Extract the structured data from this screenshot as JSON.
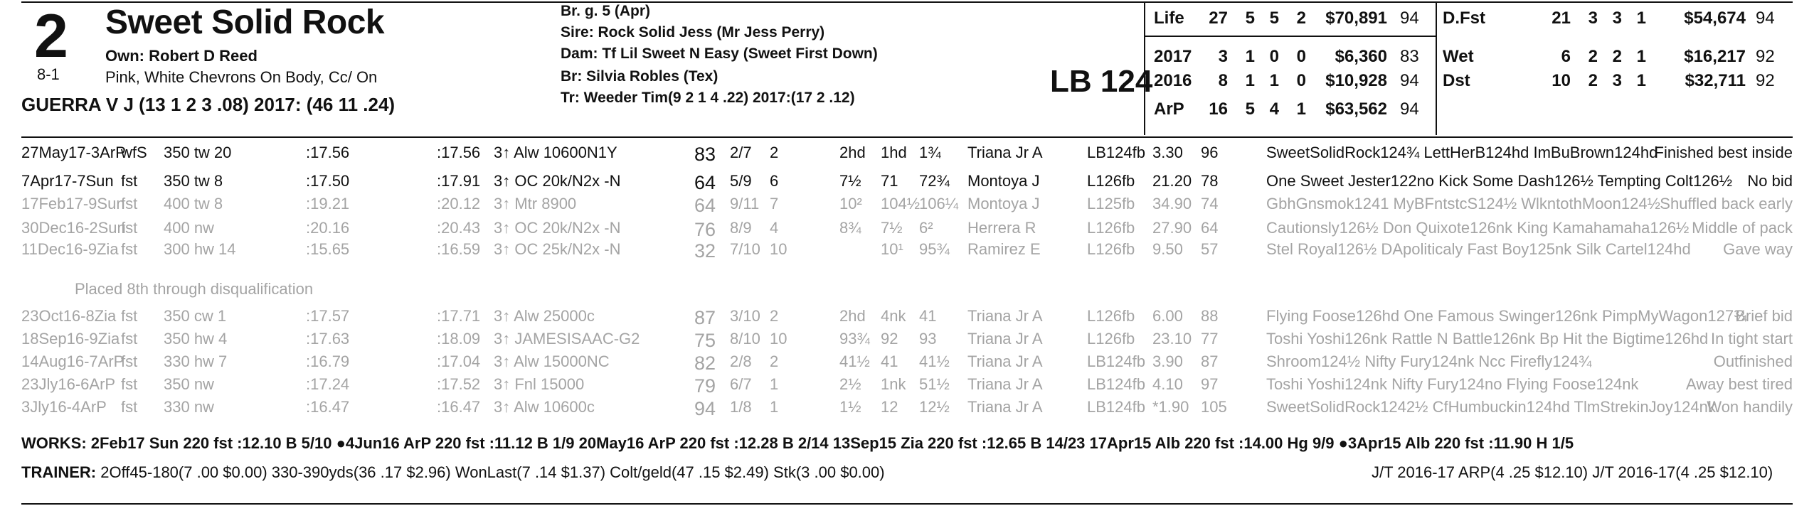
{
  "header": {
    "program_number": "2",
    "horse_name": "Sweet Solid Rock",
    "owner": "Own: Robert D Reed",
    "morning_line": "8-1",
    "silks": "Pink, White Chevrons On Body, Cc/ On",
    "jockey": "GUERRA V J (13 1 2 3 .08) 2017: (46 11 .24)",
    "breeding": "Br. g. 5 (Apr)",
    "sire": "Sire: Rock Solid Jess (Mr Jess Perry)",
    "dam": "Dam: Tf Lil Sweet N Easy (Sweet First Down)",
    "breeder": "Br:   Silvia Robles (Tex)",
    "trainer": "Tr:    Weeder Tim(9 2 1 4 .22) 2017:(17 2 .12)",
    "weight": "LB 124"
  },
  "stats_left": [
    {
      "label": "Life",
      "starts": "27",
      "w": "5",
      "p": "5",
      "s": "2",
      "earn": "$70,891",
      "fig": "94"
    },
    {
      "label": "2017",
      "starts": "3",
      "w": "1",
      "p": "0",
      "s": "0",
      "earn": "$6,360",
      "fig": "83"
    },
    {
      "label": "2016",
      "starts": "8",
      "w": "1",
      "p": "1",
      "s": "0",
      "earn": "$10,928",
      "fig": "94"
    },
    {
      "label": "ArP",
      "starts": "16",
      "w": "5",
      "p": "4",
      "s": "1",
      "earn": "$63,562",
      "fig": "94"
    }
  ],
  "stats_right": [
    {
      "label": "D.Fst",
      "starts": "21",
      "w": "3",
      "p": "3",
      "s": "1",
      "earn": "$54,674",
      "fig": "94"
    },
    {
      "label": "Wet",
      "starts": "6",
      "w": "2",
      "p": "2",
      "s": "1",
      "earn": "$16,217",
      "fig": "92"
    },
    {
      "label": "Dst",
      "starts": "10",
      "w": "2",
      "p": "3",
      "s": "1",
      "earn": "$32,711",
      "fig": "92"
    }
  ],
  "lines": [
    {
      "date": "27May17-3ArP",
      "cond": "wfS",
      "dist": "350 tw 20",
      "f1": ":17.56",
      "f2": ":17.56",
      "race": "3↑ Alw 10600N1Y",
      "fig": "83",
      "pp": "2/7",
      "st": "2",
      "c1": "2hd",
      "c2": "1hd",
      "fin": "1¾",
      "jock": "Triana Jr A",
      "wt": "LB124fb",
      "odds": "3.30",
      "sp": "96",
      "top": "SweetSolidRock124¾ LettHerB124hd ImBuBrown124hd",
      "comment": "Finished best inside",
      "faded": false
    },
    {
      "date": "7Apr17-7Sun",
      "cond": "fst",
      "dist": "350 tw 8",
      "f1": ":17.50",
      "f2": ":17.91",
      "race": "3↑ OC 20k/N2x -N",
      "fig": "64",
      "pp": "5/9",
      "st": "6",
      "c1": "7½",
      "c2": "71",
      "fin": "72¾",
      "jock": "Montoya J",
      "wt": "L126fb",
      "odds": "21.20",
      "sp": "78",
      "top": "One Sweet Jester122no Kick Some Dash126½ Tempting Colt126½",
      "comment": "No bid",
      "faded": false
    },
    {
      "date": "17Feb17-9Sun",
      "cond": "fst",
      "dist": "400 tw 8",
      "f1": ":19.21",
      "f2": ":20.12",
      "race": "3↑ Mtr 8900",
      "fig": "64",
      "pp": "9/11",
      "st": "7",
      "c1": "10²",
      "c2": "104½",
      "fin": "106¼",
      "jock": "Montoya J",
      "wt": "L125fb",
      "odds": "34.90",
      "sp": "74",
      "top": "GbhGnsmok1241 MyBFntstcS124½ WlkntothMoon124½",
      "comment": "Shuffled back early",
      "faded": true
    },
    {
      "date": "30Dec16-2Sun",
      "cond": "fst",
      "dist": "400 nw",
      "f1": ":20.16",
      "f2": ":20.43",
      "race": "3↑ OC 20k/N2x -N",
      "fig": "76",
      "pp": "8/9",
      "st": "4",
      "c1": "8¾",
      "c2": "7½",
      "fin": "6²",
      "jock": "Herrera R",
      "wt": "L126fb",
      "odds": "27.90",
      "sp": "64",
      "top": "Cautionsly126½ Don Quixote126nk King Kamahamaha126½",
      "comment": "Middle of pack",
      "faded": true
    },
    {
      "date": "11Dec16-9Zia",
      "cond": "fst",
      "dist": "300 hw 14",
      "f1": ":15.65",
      "f2": ":16.59",
      "race": "3↑ OC 25k/N2x -N",
      "fig": "32",
      "pp": "7/10",
      "st": "10",
      "c1": "",
      "c2": "10¹",
      "fin": "95¾",
      "jock": "Ramirez E",
      "wt": "L126fb",
      "odds": "9.50",
      "sp": "57",
      "top": "Stel Royal126½ DApoliticaly Fast Boy125nk Silk Cartel124hd",
      "comment": "Gave way",
      "faded": true
    },
    {
      "date": "23Oct16-8Zia",
      "cond": "fst",
      "dist": "350 cw 1",
      "f1": ":17.57",
      "f2": ":17.71",
      "race": "3↑ Alw 25000c",
      "fig": "87",
      "pp": "3/10",
      "st": "2",
      "c1": "2hd",
      "c2": "4nk",
      "fin": "41",
      "jock": "Triana Jr A",
      "wt": "L126fb",
      "odds": "6.00",
      "sp": "88",
      "top": "Flying Foose126hd One Famous Swinger126nk PimpMyWagon127¾",
      "comment": "Brief bid",
      "faded": true
    },
    {
      "date": "18Sep16-9Zia",
      "cond": "fst",
      "dist": "350 hw 4",
      "f1": ":17.63",
      "f2": ":18.09",
      "race": "3↑ JAMESISAAC-G2",
      "fig": "75",
      "pp": "8/10",
      "st": "10",
      "c1": "93¾",
      "c2": "92",
      "fin": "93",
      "jock": "Triana Jr A",
      "wt": "L126fb",
      "odds": "23.10",
      "sp": "77",
      "top": "Toshi Yoshi126nk Rattle N Battle126nk Bp Hit the Bigtime126hd",
      "comment": "In tight start",
      "faded": true
    },
    {
      "date": "14Aug16-7ArP",
      "cond": "fst",
      "dist": "330 hw 7",
      "f1": ":16.79",
      "f2": ":17.04",
      "race": "3↑ Alw 15000NC",
      "fig": "82",
      "pp": "2/8",
      "st": "2",
      "c1": "41½",
      "c2": "41",
      "fin": "41½",
      "jock": "Triana Jr A",
      "wt": "LB124fb",
      "odds": "3.90",
      "sp": "87",
      "top": "Shroom124½ Nifty Fury124nk Ncc Firefly124¾",
      "comment": "Outfinished",
      "faded": true
    },
    {
      "date": "23Jly16-6ArP",
      "cond": "fst",
      "dist": "350 nw",
      "f1": ":17.24",
      "f2": ":17.52",
      "race": "3↑ Fnl 15000",
      "fig": "79",
      "pp": "6/7",
      "st": "1",
      "c1": "2½",
      "c2": "1nk",
      "fin": "51½",
      "jock": "Triana Jr A",
      "wt": "LB124fb",
      "odds": "4.10",
      "sp": "97",
      "top": "Toshi Yoshi124nk Nifty Fury124no Flying Foose124nk",
      "comment": "Away best tired",
      "faded": true
    },
    {
      "date": "3Jly16-4ArP",
      "cond": "fst",
      "dist": "330 nw",
      "f1": ":16.47",
      "f2": ":16.47",
      "race": "3↑ Alw 10600c",
      "fig": "94",
      "pp": "1/8",
      "st": "1",
      "c1": "1½",
      "c2": "12",
      "fin": "12½",
      "jock": "Triana Jr A",
      "wt": "LB124fb",
      "odds": "*1.90",
      "sp": "105",
      "top": "SweetSolidRock1242½ CfHumbuckin124hd TlmStrekinJoy124nk",
      "comment": "Won handily",
      "faded": true
    }
  ],
  "disq_note": "Placed 8th through disqualification",
  "works": "WORKS:   2Feb17 Sun 220 fst  :12.10 B 5/10   ●4Jun16 ArP 220 fst  :11.12 B 1/9   20May16 ArP 220 fst  :12.28 B 2/14   13Sep15 Zia 220 fst  :12.65 B 14/23   17Apr15 Alb 220 fst  :14.00 Hg 9/9   ●3Apr15 Alb 220 fst  :11.90 H 1/5",
  "trainer_stats": {
    "label": "TRAINER:",
    "text": "2Off45-180(7 .00 $0.00) 330-390yds(36 .17 $2.96) WonLast(7 .14 $1.37) Colt/geld(47 .15 $2.49) Stk(3 .00 $0.00)",
    "jt": "J/T 2016-17 ARP(4 .25 $12.10)  J/T 2016-17(4 .25 $12.10)"
  }
}
